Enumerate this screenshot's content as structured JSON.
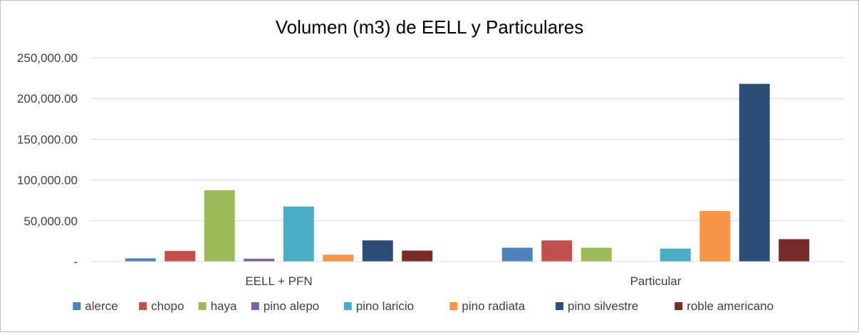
{
  "chart_data": {
    "type": "bar",
    "title": "Volumen (m3) de EELL y Particulares",
    "categories": [
      "EELL + PFN",
      "Particular"
    ],
    "ylim": [
      0,
      250000
    ],
    "yticks": [
      0,
      50000,
      100000,
      150000,
      200000,
      250000
    ],
    "ytick_labels": [
      "-",
      "50,000.00",
      "100,000.00",
      "150,000.00",
      "200,000.00",
      "250,000.00"
    ],
    "grid": true,
    "legend_position": "bottom",
    "series": [
      {
        "name": "alerce",
        "color": "#4f81bd",
        "values": [
          4000,
          17000
        ]
      },
      {
        "name": "chopo",
        "color": "#c0504d",
        "values": [
          13000,
          26000
        ]
      },
      {
        "name": "haya",
        "color": "#9bbb59",
        "values": [
          87500,
          17000
        ]
      },
      {
        "name": "pino alepo",
        "color": "#8064a2",
        "values": [
          3500,
          500
        ]
      },
      {
        "name": "pino laricio",
        "color": "#4bacc6",
        "values": [
          67500,
          16000
        ]
      },
      {
        "name": "pino radiata",
        "color": "#f79646",
        "values": [
          8500,
          62000
        ]
      },
      {
        "name": "pino silvestre",
        "color": "#2c4d75",
        "values": [
          26000,
          218000
        ]
      },
      {
        "name": "roble americano",
        "color": "#772c2a",
        "values": [
          13500,
          27500
        ]
      }
    ]
  }
}
